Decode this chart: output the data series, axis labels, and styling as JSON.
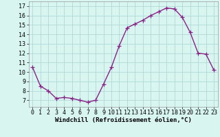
{
  "x": [
    0,
    1,
    2,
    3,
    4,
    5,
    6,
    7,
    8,
    9,
    10,
    11,
    12,
    13,
    14,
    15,
    16,
    17,
    18,
    19,
    20,
    21,
    22,
    23
  ],
  "y": [
    10.5,
    8.5,
    8.0,
    7.2,
    7.3,
    7.2,
    7.0,
    6.8,
    7.0,
    8.7,
    10.5,
    12.8,
    14.7,
    15.1,
    15.5,
    16.0,
    16.4,
    16.8,
    16.7,
    15.8,
    14.2,
    12.0,
    11.9,
    10.2
  ],
  "line_color": "#882288",
  "bg_color": "#d8f5f0",
  "grid_color": "#b0d8d8",
  "xlabel": "Windchill (Refroidissement éolien,°C)",
  "xlim": [
    -0.5,
    23.5
  ],
  "ylim": [
    6.3,
    17.5
  ],
  "yticks": [
    7,
    8,
    9,
    10,
    11,
    12,
    13,
    14,
    15,
    16,
    17
  ],
  "xticks": [
    0,
    1,
    2,
    3,
    4,
    5,
    6,
    7,
    8,
    9,
    10,
    11,
    12,
    13,
    14,
    15,
    16,
    17,
    18,
    19,
    20,
    21,
    22,
    23
  ],
  "xlabel_fontsize": 6.5,
  "tick_fontsize": 6.0,
  "marker_size": 4,
  "line_width": 1.0
}
